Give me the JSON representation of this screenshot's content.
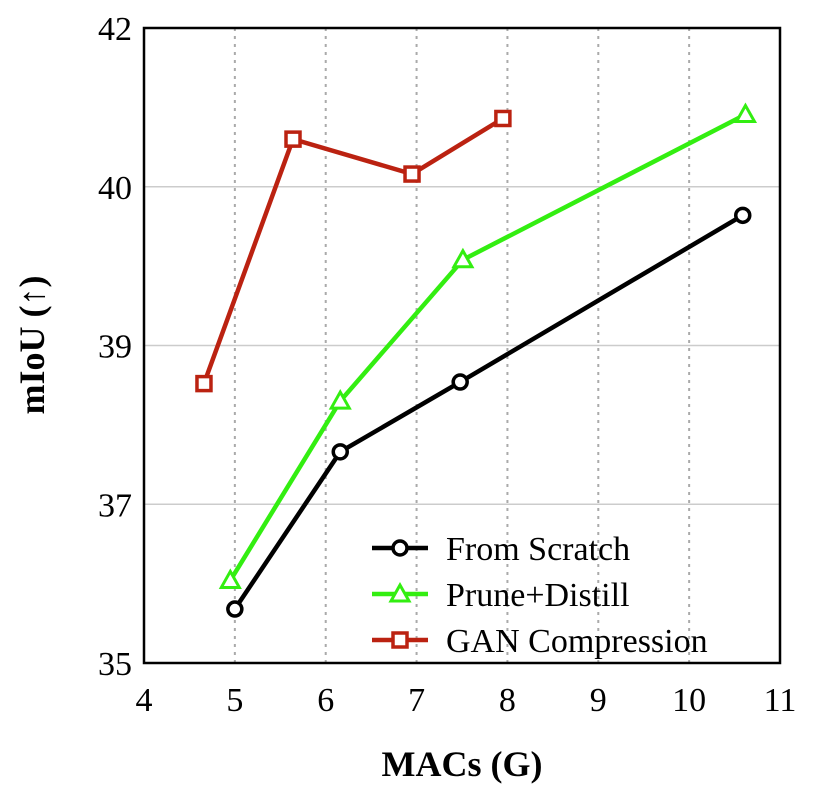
{
  "chart_data": {
    "type": "line",
    "title": "",
    "xlabel": "MACs (G)",
    "ylabel": "mIoU (↑)",
    "xlim": [
      4,
      11
    ],
    "x_ticks": [
      4,
      5,
      6,
      7,
      8,
      9,
      10,
      11
    ],
    "y_ticks": [
      35,
      37,
      39,
      40,
      42
    ],
    "y_ticks_evenly_spaced": true,
    "grid": true,
    "legend_position": "bottom-right",
    "series": [
      {
        "name": "From Scratch",
        "color": "#000000",
        "marker": "circle",
        "x": [
          5.0,
          6.16,
          7.48,
          10.59
        ],
        "y": [
          35.68,
          37.66,
          38.54,
          39.82
        ]
      },
      {
        "name": "Prune+Distill",
        "color": "#33ee11",
        "marker": "triangle",
        "x": [
          4.95,
          6.16,
          7.51,
          10.62
        ],
        "y": [
          36.04,
          38.3,
          39.54,
          40.91
        ]
      },
      {
        "name": "GAN Compression",
        "color": "#bb2211",
        "marker": "square",
        "x": [
          4.66,
          5.64,
          6.95,
          7.95
        ],
        "y": [
          38.52,
          40.6,
          40.16,
          40.86
        ]
      }
    ]
  }
}
